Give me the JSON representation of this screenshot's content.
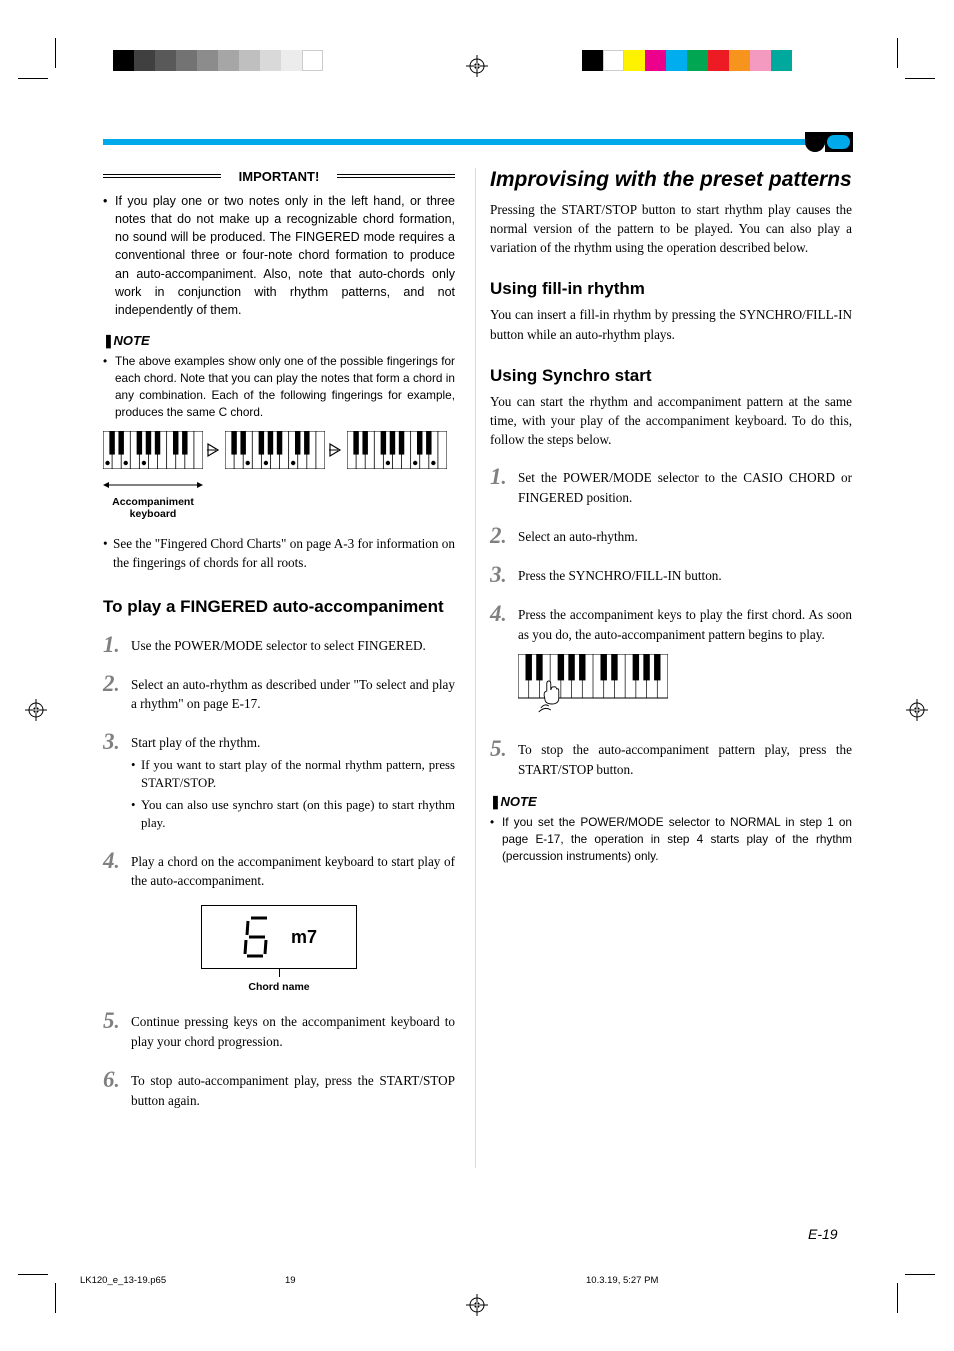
{
  "print_marks": {
    "left_bar_colors": [
      "#000000",
      "#404040",
      "#595959",
      "#737373",
      "#8c8c8c",
      "#a6a6a6",
      "#bfbfbf",
      "#d9d9d9",
      "#ececec",
      "#ffffff"
    ],
    "right_bar_colors": [
      "#000000",
      "#ffffff",
      "#fff200",
      "#ec008c",
      "#00aeef",
      "#00a651",
      "#ed1c24",
      "#f7941d",
      "#f49ac1",
      "#00a99d"
    ],
    "top_rule_color": "#00aaea",
    "pill_outer": "#000000",
    "pill_inner": "#00aaea"
  },
  "left": {
    "important_label": "IMPORTANT!",
    "important_text": "If you play one or two notes only in the left hand, or three notes that do not make up a recognizable chord formation, no sound will be produced. The FINGERED mode requires a conventional three or four-note chord formation to produce an auto-accompaniment. Also, note that auto-chords only work in conjunction with rhythm patterns, and not independently of them.",
    "note_label": "NOTE",
    "note_text": "The above examples show only one of the possible fingerings for each chord. Note that you can play the notes that form a chord in any combination. Each of the following fingerings for example, produces the same C chord.",
    "kb_caption": "Accompaniment keyboard",
    "ref_text": "See the \"Fingered Chord Charts\" on page A-3 for information on the fingerings of chords for all roots.",
    "h3": "To play a FINGERED auto-accompaniment",
    "steps": {
      "s1": "Use the POWER/MODE selector to select FINGERED.",
      "s2": "Select an auto-rhythm as described under \"To select and play a rhythm\" on page E-17.",
      "s3": "Start play of the rhythm.",
      "s3a": "If you want to start play of the normal rhythm pattern, press START/STOP.",
      "s3b": "You can also use synchro start (on this page) to start rhythm play.",
      "s4": "Play a chord on the accompaniment keyboard to start play of the auto-accompaniment.",
      "s5": "Continue pressing keys on the accompaniment keyboard to play your chord progression.",
      "s6": "To stop auto-accompaniment play, press the START/STOP button again."
    },
    "lcd_digit": "6",
    "lcd_text": "m7",
    "lcd_caption": "Chord name"
  },
  "right": {
    "h2": "Improvising with the preset patterns",
    "intro": "Pressing the START/STOP button to start rhythm play causes the normal version of the pattern to be played. You can also play a variation of the rhythm using the operation described below.",
    "h3a": "Using fill-in rhythm",
    "p1": "You can insert a fill-in rhythm by pressing the SYNCHRO/FILL-IN button while an auto-rhythm plays.",
    "h3b": "Using Synchro start",
    "p2": "You can start the rhythm and accompaniment pattern at the same time, with your play of the accompaniment keyboard. To do this, follow the steps below.",
    "steps": {
      "s1": "Set the POWER/MODE selector to the CASIO CHORD or FINGERED position.",
      "s2": "Select an auto-rhythm.",
      "s3": "Press the SYNCHRO/FILL-IN button.",
      "s4": "Press the accompaniment keys to play the first chord. As soon as you do, the auto-accompaniment pattern begins to play.",
      "s5": "To stop the auto-accompaniment pattern play, press the START/STOP button."
    },
    "note_label": "NOTE",
    "note_text": "If you set the POWER/MODE selector to NORMAL in step 1 on page E-17, the operation in step 4 starts play of the rhythm (percussion instruments) only."
  },
  "footer": {
    "page_num": "E-19",
    "file": "LK120_e_13-19.p65",
    "pg": "19",
    "date": "10.3.19, 5:27 PM"
  },
  "keyboards": {
    "dot_pattern_1": [
      0,
      2,
      4
    ],
    "dot_pattern_2": [
      2,
      4,
      7
    ],
    "dot_pattern_3": [
      4,
      7,
      9
    ]
  }
}
